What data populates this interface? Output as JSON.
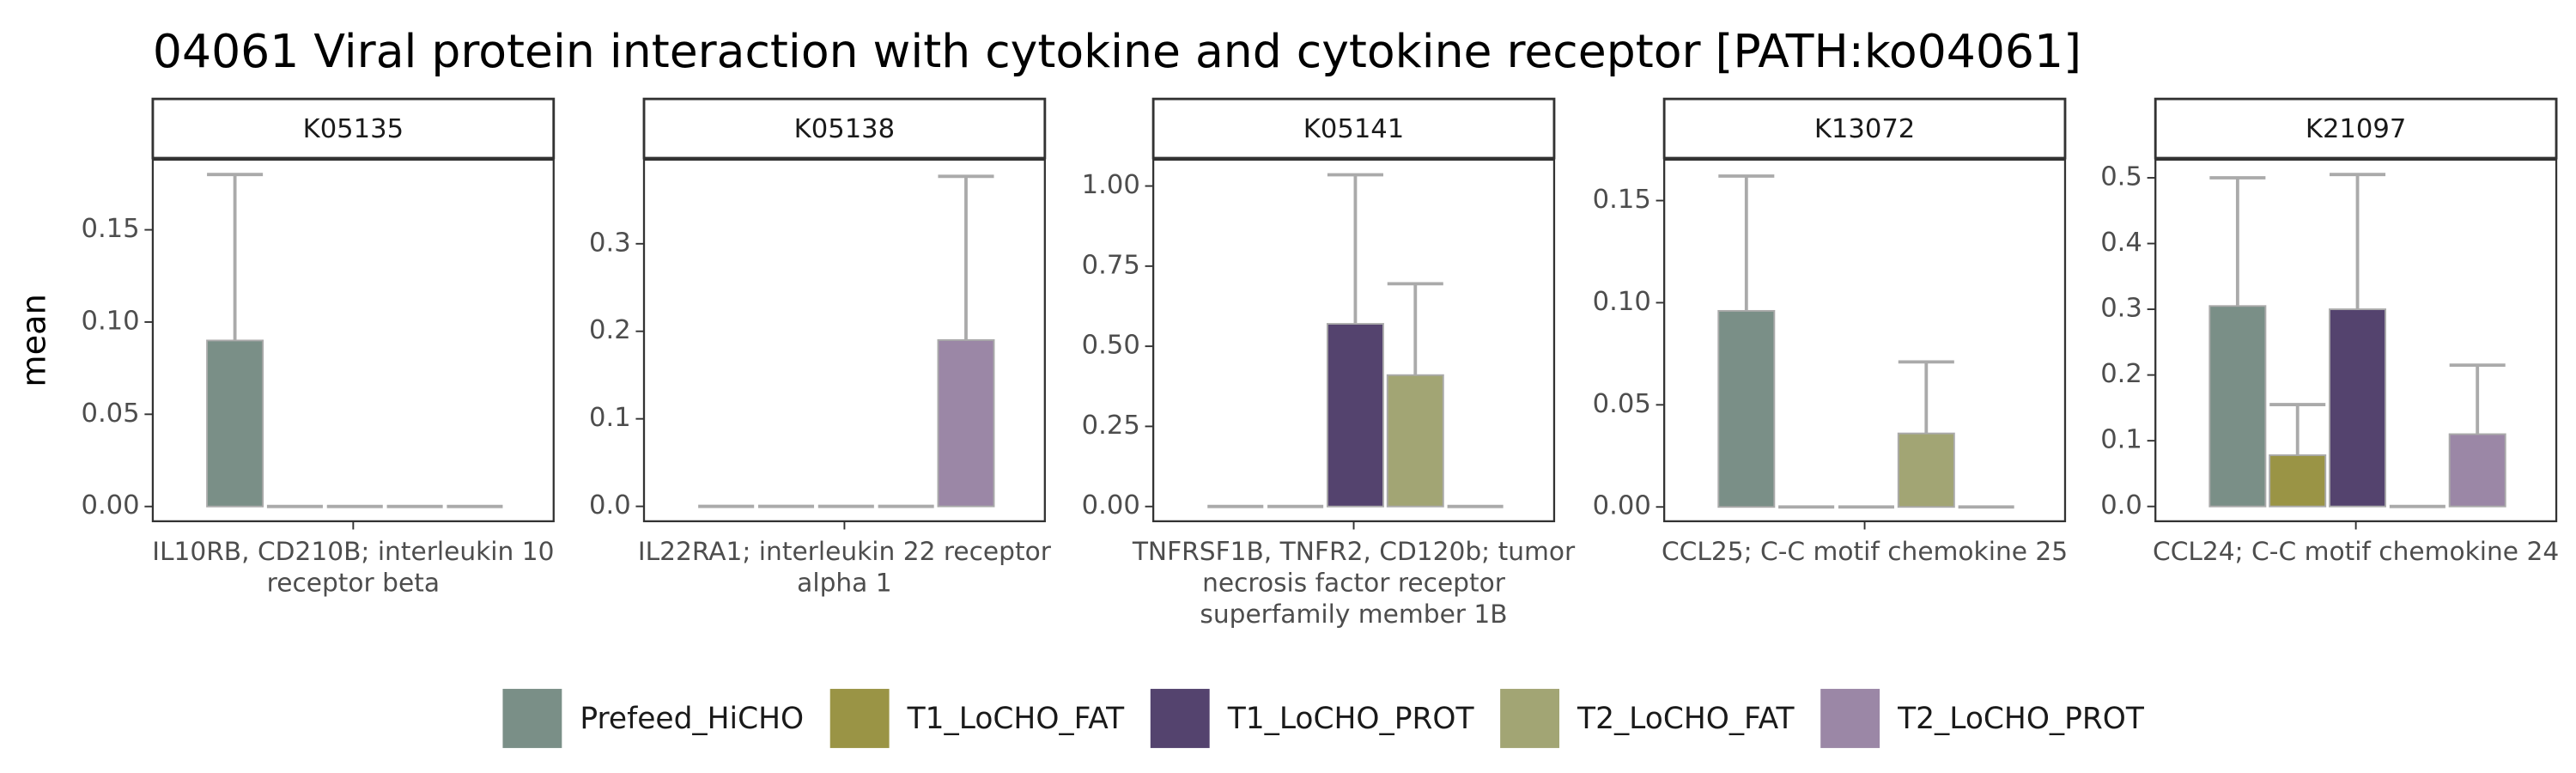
{
  "title": "04061 Viral protein interaction with cytokine and cytokine receptor [PATH:ko04061]",
  "y_label": "mean",
  "chart_data": [
    {
      "type": "bar",
      "facet": "K05135",
      "categories": [
        "IL10RB, CD210B; interleukin 10 receptor beta"
      ],
      "ylim": [
        -0.008,
        0.188
      ],
      "yticks": [
        {
          "value": 0,
          "label": "0.00"
        },
        {
          "value": 0.05,
          "label": "0.05"
        },
        {
          "value": 0.1,
          "label": "0.10"
        },
        {
          "value": 0.15,
          "label": "0.15"
        }
      ],
      "series": [
        {
          "name": "Prefeed_HiCHO",
          "color": "#7a8f87",
          "values": [
            0.09
          ],
          "errors": [
            0.09
          ]
        },
        {
          "name": "T1_LoCHO_FAT",
          "color": "#9a9445",
          "values": [
            0
          ],
          "errors": [
            0
          ]
        },
        {
          "name": "T1_LoCHO_PROT",
          "color": "#54436e",
          "values": [
            0
          ],
          "errors": [
            0
          ]
        },
        {
          "name": "T2_LoCHO_FAT",
          "color": "#a2a574",
          "values": [
            0
          ],
          "errors": [
            0
          ]
        },
        {
          "name": "T2_LoCHO_PROT",
          "color": "#9b87a6",
          "values": [
            0
          ],
          "errors": [
            0
          ]
        }
      ]
    },
    {
      "type": "bar",
      "facet": "K05138",
      "categories": [
        "IL22RA1; interleukin 22 receptor alpha 1"
      ],
      "ylim": [
        -0.017,
        0.396
      ],
      "yticks": [
        {
          "value": 0,
          "label": "0.0"
        },
        0.1,
        0.2,
        0.3
      ],
      "series": [
        {
          "name": "Prefeed_HiCHO",
          "color": "#7a8f87",
          "values": [
            0
          ],
          "errors": [
            0
          ]
        },
        {
          "name": "T1_LoCHO_FAT",
          "color": "#9a9445",
          "values": [
            0
          ],
          "errors": [
            0
          ]
        },
        {
          "name": "T1_LoCHO_PROT",
          "color": "#54436e",
          "values": [
            0
          ],
          "errors": [
            0
          ]
        },
        {
          "name": "T2_LoCHO_FAT",
          "color": "#a2a574",
          "values": [
            0
          ],
          "errors": [
            0
          ]
        },
        {
          "name": "T2_LoCHO_PROT",
          "color": "#9b87a6",
          "values": [
            0.19
          ],
          "errors": [
            0.187
          ]
        }
      ]
    },
    {
      "type": "bar",
      "facet": "K05141",
      "categories": [
        "TNFRSF1B, TNFR2, CD120b; tumor necrosis factor receptor superfamily member 1B"
      ],
      "ylim": [
        -0.046,
        1.082
      ],
      "yticks": [
        {
          "value": 0,
          "label": "0.00"
        },
        0.25,
        {
          "value": 0.5,
          "label": "0.50"
        },
        0.75,
        {
          "value": 1,
          "label": "1.00"
        }
      ],
      "series": [
        {
          "name": "Prefeed_HiCHO",
          "color": "#7a8f87",
          "values": [
            0
          ],
          "errors": [
            0
          ]
        },
        {
          "name": "T1_LoCHO_FAT",
          "color": "#9a9445",
          "values": [
            0
          ],
          "errors": [
            0
          ]
        },
        {
          "name": "T1_LoCHO_PROT",
          "color": "#54436e",
          "values": [
            0.57
          ],
          "errors": [
            0.465
          ]
        },
        {
          "name": "T2_LoCHO_FAT",
          "color": "#a2a574",
          "values": [
            0.41
          ],
          "errors": [
            0.285
          ]
        },
        {
          "name": "T2_LoCHO_PROT",
          "color": "#9b87a6",
          "values": [
            0
          ],
          "errors": [
            0
          ]
        }
      ]
    },
    {
      "type": "bar",
      "facet": "K13072",
      "categories": [
        "CCL25; C-C motif chemokine 25"
      ],
      "ylim": [
        -0.007,
        0.17
      ],
      "yticks": [
        {
          "value": 0,
          "label": "0.00"
        },
        0.05,
        {
          "value": 0.1,
          "label": "0.10"
        },
        0.15
      ],
      "series": [
        {
          "name": "Prefeed_HiCHO",
          "color": "#7a8f87",
          "values": [
            0.096
          ],
          "errors": [
            0.066
          ]
        },
        {
          "name": "T1_LoCHO_FAT",
          "color": "#9a9445",
          "values": [
            0
          ],
          "errors": [
            0
          ]
        },
        {
          "name": "T1_LoCHO_PROT",
          "color": "#54436e",
          "values": [
            0
          ],
          "errors": [
            0
          ]
        },
        {
          "name": "T2_LoCHO_FAT",
          "color": "#a2a574",
          "values": [
            0.036
          ],
          "errors": [
            0.035
          ]
        },
        {
          "name": "T2_LoCHO_PROT",
          "color": "#9b87a6",
          "values": [
            0
          ],
          "errors": [
            0
          ]
        }
      ]
    },
    {
      "type": "bar",
      "facet": "K21097",
      "categories": [
        "CCL24; C-C motif chemokine 24"
      ],
      "ylim": [
        -0.0225,
        0.5275
      ],
      "yticks": [
        {
          "value": 0,
          "label": "0.0"
        },
        0.1,
        0.2,
        0.3,
        0.4,
        0.5
      ],
      "series": [
        {
          "name": "Prefeed_HiCHO",
          "color": "#7a8f87",
          "values": [
            0.305
          ],
          "errors": [
            0.195
          ]
        },
        {
          "name": "T1_LoCHO_FAT",
          "color": "#9a9445",
          "values": [
            0.078
          ],
          "errors": [
            0.077
          ]
        },
        {
          "name": "T1_LoCHO_PROT",
          "color": "#54436e",
          "values": [
            0.3
          ],
          "errors": [
            0.205
          ]
        },
        {
          "name": "T2_LoCHO_FAT",
          "color": "#a2a574",
          "values": [
            0
          ],
          "errors": [
            0
          ]
        },
        {
          "name": "T2_LoCHO_PROT",
          "color": "#9b87a6",
          "values": [
            0.11
          ],
          "errors": [
            0.105
          ]
        }
      ]
    }
  ]
}
